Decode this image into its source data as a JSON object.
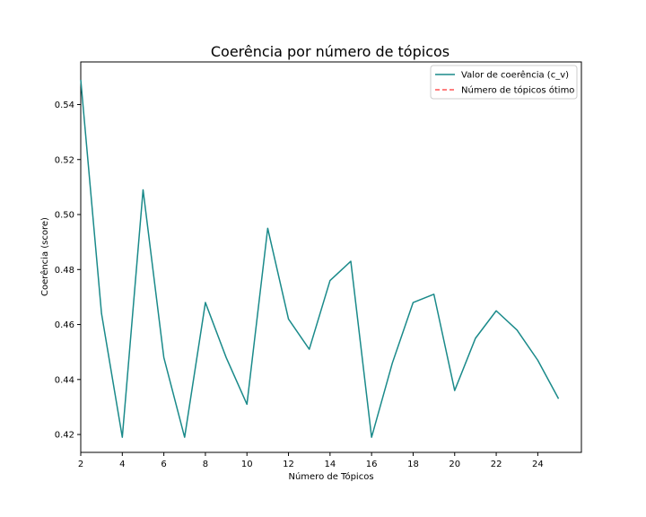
{
  "chart_data": {
    "type": "line",
    "title": "Coerência por número de tópicos",
    "xlabel": "Número de Tópicos",
    "ylabel": "Coerência (score)",
    "xlim": [
      2,
      26.1
    ],
    "ylim": [
      0.4135,
      0.5555
    ],
    "xticks": [
      2,
      4,
      6,
      8,
      10,
      12,
      14,
      16,
      18,
      20,
      22,
      24
    ],
    "yticks": [
      0.42,
      0.44,
      0.46,
      0.48,
      0.5,
      0.52,
      0.54
    ],
    "grid": false,
    "legend_position": "top-right",
    "series": [
      {
        "name": "Valor de coerência (c_v)",
        "color": "#1a8a8a",
        "style": "solid",
        "x": [
          2,
          3,
          4,
          5,
          6,
          7,
          8,
          9,
          10,
          11,
          12,
          13,
          14,
          15,
          16,
          17,
          18,
          19,
          20,
          21,
          22,
          23,
          24,
          25
        ],
        "y": [
          0.549,
          0.464,
          0.419,
          0.509,
          0.448,
          0.419,
          0.468,
          0.448,
          0.431,
          0.495,
          0.462,
          0.451,
          0.476,
          0.483,
          0.419,
          0.446,
          0.468,
          0.471,
          0.436,
          0.455,
          0.465,
          0.458,
          0.447,
          0.433
        ]
      },
      {
        "name": "Número de tópicos ótimo",
        "color": "#ff5555",
        "style": "dashed",
        "x": [],
        "y": []
      }
    ]
  }
}
